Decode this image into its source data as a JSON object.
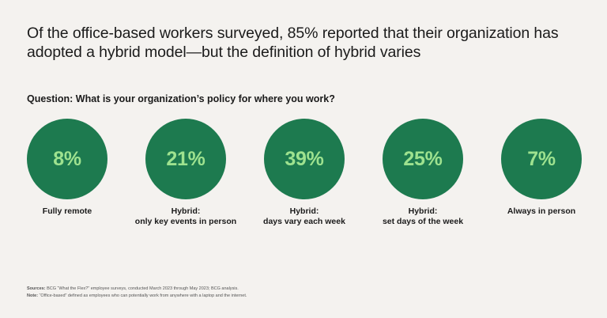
{
  "headline": {
    "line1": "Of the office-based workers surveyed, 85% reported that their organization has",
    "line2": "adopted a hybrid model—but the definition of hybrid varies"
  },
  "colors": {
    "circle": "#1d7a4f",
    "value_text": "#9ee28f",
    "background": "#f4f2ef"
  },
  "chart_data": {
    "type": "proportional-circles",
    "title": "Question: What is your organization’s policy for where you work?",
    "unit": "%",
    "categories": [
      [
        "Fully remote"
      ],
      [
        "Hybrid:",
        "only key events in person"
      ],
      [
        "Hybrid:",
        "days vary each week"
      ],
      [
        "Hybrid:",
        "set days of the week"
      ],
      [
        "Always in person"
      ]
    ],
    "values": [
      8,
      21,
      39,
      25,
      7
    ],
    "value_labels": [
      "8%",
      "21%",
      "39%",
      "25%",
      "7%"
    ]
  },
  "footer": {
    "sources_label": "Sources:",
    "sources_text": " BCG “What the Flex?” employee surveys, conducted March 2023 through May 2023; BCG analysis.",
    "note_label": "Note:",
    "note_text": " “Office-based” defined as employees who can potentially work from anywhere with a laptop and the internet."
  }
}
